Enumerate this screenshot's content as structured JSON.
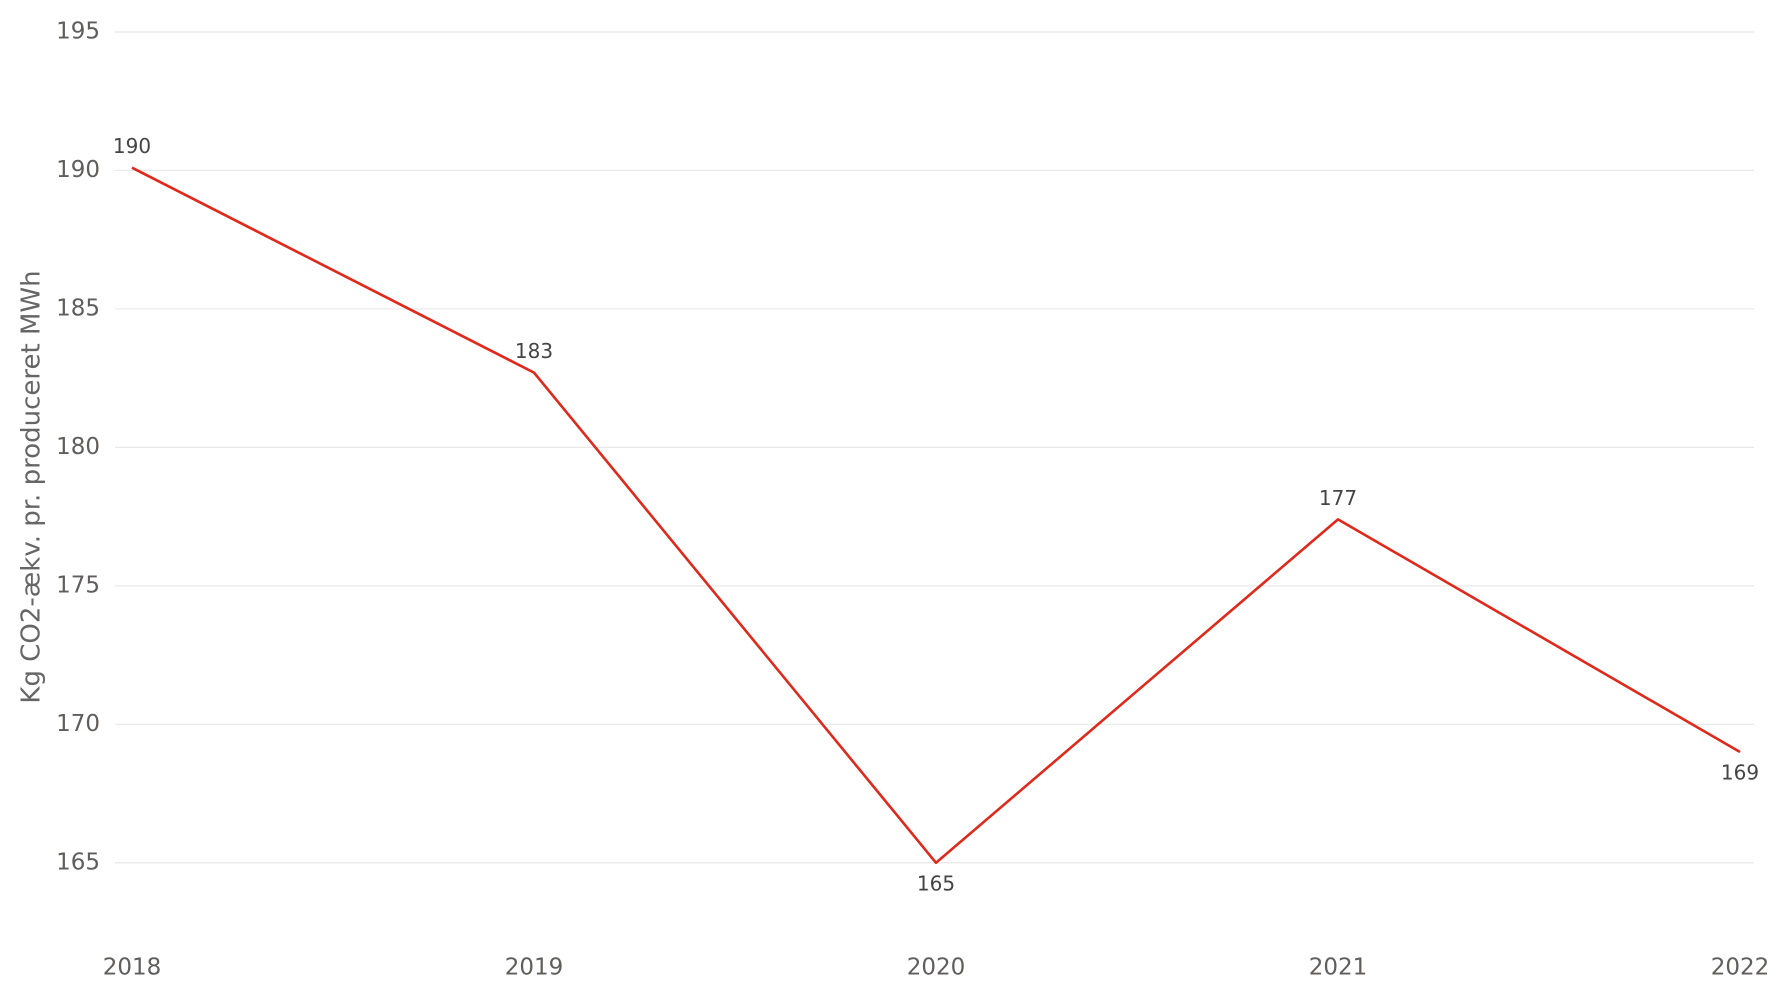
{
  "chart_data": {
    "type": "line",
    "y_label": "Kg CO2-ækv. pr. produceret MWh",
    "x": [
      2018,
      2019,
      2020,
      2021,
      2022
    ],
    "xlim": [
      2018,
      2022
    ],
    "xticks": [
      2018,
      2019,
      2020,
      2021,
      2022
    ],
    "ylim": [
      162.5,
      195
    ],
    "yticks": [
      165,
      170,
      175,
      180,
      185,
      190,
      195
    ],
    "grid": true,
    "series": [
      {
        "name": "Kg CO2-ækv. pr. produceret MWh",
        "color": "#e0291b",
        "values": [
          190.1,
          182.7,
          165.0,
          177.4,
          169.0
        ],
        "value_labels": [
          "190",
          "183",
          "165",
          "177",
          "169"
        ]
      }
    ]
  }
}
